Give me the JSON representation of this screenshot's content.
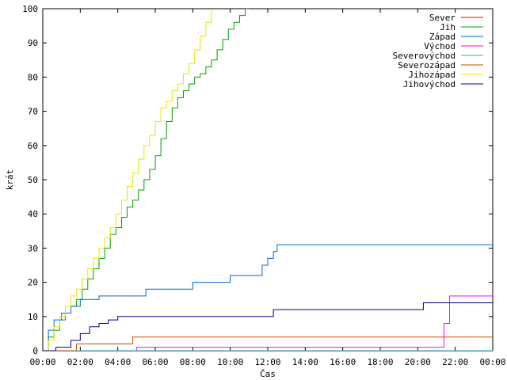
{
  "chart_data": {
    "type": "line",
    "title": "",
    "xlabel": "Čas",
    "ylabel": "krát",
    "xlim": [
      0,
      24
    ],
    "ylim": [
      0,
      100
    ],
    "x_ticks": [
      "00:00",
      "02:00",
      "04:00",
      "06:00",
      "08:00",
      "10:00",
      "12:00",
      "14:00",
      "16:00",
      "18:00",
      "20:00",
      "22:00",
      "00:00"
    ],
    "y_ticks": [
      0,
      10,
      20,
      30,
      40,
      50,
      60,
      70,
      80,
      90,
      100
    ],
    "grid": false,
    "legend_position": "top-right",
    "series": [
      {
        "name": "Sever",
        "color": "#ff0000",
        "x": [
          0,
          24
        ],
        "y": [
          0,
          0
        ]
      },
      {
        "name": "Jih",
        "color": "#00a000",
        "x": [
          0,
          0.3,
          0.6,
          0.9,
          1.2,
          1.5,
          1.8,
          2.1,
          2.4,
          2.7,
          3.0,
          3.3,
          3.6,
          3.9,
          4.2,
          4.5,
          4.8,
          5.1,
          5.4,
          5.7,
          6.0,
          6.3,
          6.6,
          6.9,
          7.2,
          7.5,
          7.8,
          8.1,
          8.4,
          8.7,
          9.0,
          9.3,
          9.6,
          9.9,
          10.2,
          10.5,
          10.8,
          11.0
        ],
        "y": [
          0,
          4,
          6,
          9,
          11,
          13,
          15,
          18,
          21,
          24,
          27,
          30,
          34,
          36,
          39,
          42,
          44,
          47,
          50,
          53,
          57,
          62,
          67,
          71,
          74,
          76,
          78,
          80,
          81,
          83,
          85,
          88,
          91,
          94,
          96,
          98,
          100,
          100
        ]
      },
      {
        "name": "Západ",
        "color": "#0066cc",
        "x": [
          0,
          0.3,
          0.6,
          1.0,
          1.5,
          2.0,
          3.0,
          5.0,
          5.5,
          7.5,
          8.0,
          9.5,
          10.0,
          11.3,
          11.7,
          12.0,
          12.3,
          12.5,
          14.0,
          18.0,
          22.0,
          24.0
        ],
        "y": [
          0,
          6,
          9,
          11,
          13,
          15,
          16,
          16,
          18,
          18,
          20,
          20,
          22,
          22,
          25,
          27,
          29,
          31,
          31,
          31,
          31,
          31
        ]
      },
      {
        "name": "Východ",
        "color": "#ff00ff",
        "x": [
          0,
          5.0,
          6.0,
          10.0,
          15.0,
          20.0,
          21.2,
          21.4,
          21.7,
          22.0,
          24.0
        ],
        "y": [
          0,
          1,
          1,
          1,
          1,
          1,
          1,
          8,
          16,
          16,
          16
        ]
      },
      {
        "name": "Severovýchod",
        "color": "#00bfbf",
        "x": [
          0,
          24
        ],
        "y": [
          0,
          0
        ]
      },
      {
        "name": "Severozápad",
        "color": "#c05000",
        "x": [
          0,
          1.8,
          3.5,
          4.8,
          8.0,
          12.0,
          17.0,
          17.2,
          20.0,
          24.0
        ],
        "y": [
          0,
          2,
          2,
          4,
          4,
          4,
          4,
          4,
          4,
          4
        ]
      },
      {
        "name": "Jihozápad",
        "color": "#e6e600",
        "x": [
          0,
          0.3,
          0.6,
          0.9,
          1.2,
          1.5,
          1.8,
          2.1,
          2.4,
          2.7,
          3.0,
          3.3,
          3.6,
          3.9,
          4.2,
          4.5,
          4.8,
          5.1,
          5.4,
          5.7,
          6.0,
          6.3,
          6.6,
          6.9,
          7.2,
          7.5,
          7.8,
          8.1,
          8.4,
          8.7,
          9.0
        ],
        "y": [
          0,
          3,
          7,
          10,
          13,
          16,
          18,
          21,
          24,
          27,
          30,
          33,
          36,
          40,
          44,
          48,
          52,
          56,
          60,
          63,
          67,
          71,
          73,
          76,
          78,
          81,
          84,
          88,
          92,
          96,
          100
        ]
      },
      {
        "name": "Jihovýchod",
        "color": "#000080",
        "x": [
          0,
          0.7,
          1.5,
          2.0,
          2.5,
          3.0,
          3.5,
          4.0,
          4.5,
          6.0,
          8.0,
          10.0,
          12.0,
          12.3,
          14.0,
          16.0,
          18.0,
          20.0,
          20.3,
          22.0,
          24.0
        ],
        "y": [
          0,
          1,
          3,
          5,
          7,
          8,
          9,
          10,
          10,
          10,
          10,
          10,
          10,
          12,
          12,
          12,
          12,
          12,
          14,
          14,
          14
        ]
      }
    ]
  }
}
